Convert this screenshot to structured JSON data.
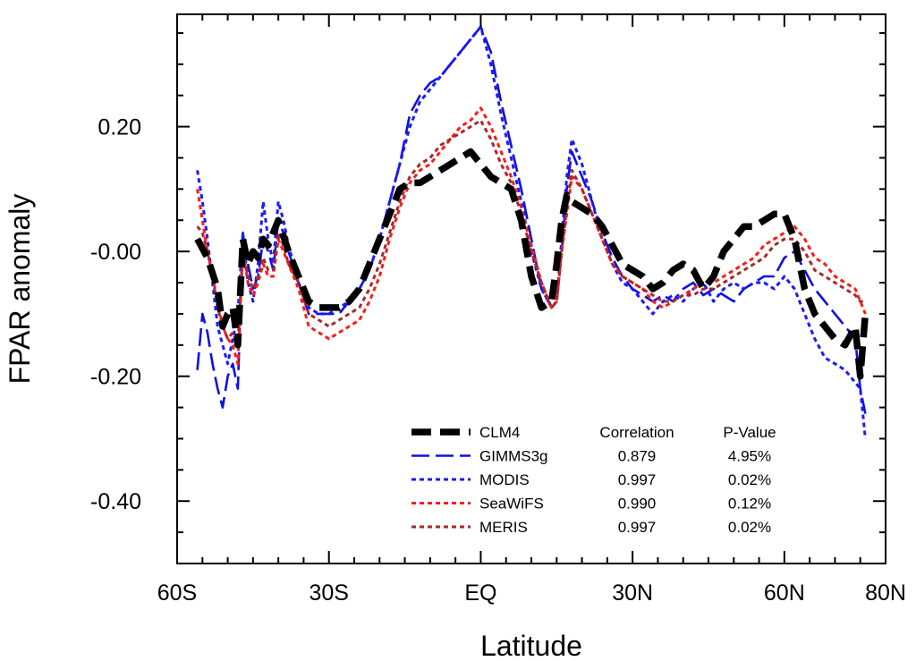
{
  "chart_data": {
    "type": "line",
    "xlabel": "Latitude",
    "ylabel": "FPAR anomaly",
    "xlim": [
      -60,
      80
    ],
    "ylim": [
      -0.5,
      0.38
    ],
    "x_ticks": [
      {
        "value": -60,
        "label": "60S"
      },
      {
        "value": -30,
        "label": "30S"
      },
      {
        "value": 0,
        "label": "EQ"
      },
      {
        "value": 30,
        "label": "30N"
      },
      {
        "value": 60,
        "label": "60N"
      },
      {
        "value": 80,
        "label": "80N"
      }
    ],
    "y_ticks": [
      {
        "value": 0.2,
        "label": "0.20"
      },
      {
        "value": 0.0,
        "label": "-0.00"
      },
      {
        "value": -0.2,
        "label": "-0.20"
      },
      {
        "value": -0.4,
        "label": "-0.40"
      }
    ],
    "legend": {
      "headers": {
        "correlation": "Correlation",
        "pvalue": "P-Value"
      },
      "placement": "bottom-right"
    },
    "series": [
      {
        "name": "CLM4",
        "color": "#000000",
        "style": "long-dash-thick",
        "correlation": "",
        "pvalue": "",
        "x": [
          -56,
          -54,
          -52,
          -51,
          -50,
          -49,
          -48,
          -47,
          -46,
          -45,
          -44,
          -43,
          -42,
          -40,
          -38,
          -37,
          -36,
          -34,
          -32,
          -30,
          -28,
          -26,
          -24,
          -22,
          -20,
          -18,
          -16,
          -14,
          -12,
          -10,
          -8,
          -6,
          -4,
          -2,
          0,
          2,
          4,
          6,
          8,
          10,
          12,
          14,
          15,
          16,
          17,
          18,
          20,
          22,
          24,
          26,
          28,
          30,
          32,
          34,
          36,
          38,
          40,
          42,
          44,
          46,
          48,
          50,
          52,
          54,
          56,
          58,
          60,
          62,
          64,
          66,
          68,
          70,
          72,
          74,
          75,
          76
        ],
        "y": [
          0.02,
          -0.01,
          -0.06,
          -0.12,
          -0.1,
          -0.09,
          -0.15,
          0.02,
          -0.02,
          0.0,
          -0.01,
          0.02,
          0.01,
          0.05,
          0.0,
          -0.02,
          -0.04,
          -0.08,
          -0.09,
          -0.09,
          -0.09,
          -0.08,
          -0.06,
          -0.02,
          0.02,
          0.06,
          0.1,
          0.11,
          0.11,
          0.12,
          0.13,
          0.14,
          0.15,
          0.16,
          0.14,
          0.12,
          0.11,
          0.1,
          0.05,
          -0.04,
          -0.09,
          -0.08,
          -0.02,
          0.05,
          0.09,
          0.08,
          0.07,
          0.06,
          0.04,
          0.01,
          -0.02,
          -0.03,
          -0.04,
          -0.06,
          -0.05,
          -0.03,
          -0.02,
          -0.03,
          -0.06,
          -0.04,
          0.0,
          0.02,
          0.04,
          0.04,
          0.05,
          0.06,
          0.06,
          0.02,
          -0.06,
          -0.1,
          -0.12,
          -0.14,
          -0.15,
          -0.12,
          -0.2,
          -0.1
        ]
      },
      {
        "name": "GIMMS3g",
        "color": "#1010e0",
        "style": "long-dash",
        "correlation": "0.879",
        "pvalue": "4.95%",
        "x": [
          -56,
          -55,
          -54,
          -53,
          -52,
          -51,
          -50,
          -49,
          -48,
          -47,
          -46,
          -45,
          -44,
          -43,
          -42,
          -41,
          -40,
          -39,
          -38,
          -36,
          -34,
          -32,
          -30,
          -28,
          -26,
          -24,
          -22,
          -20,
          -18,
          -16,
          -14,
          -12,
          -10,
          -8,
          -6,
          -4,
          -2,
          0,
          2,
          4,
          6,
          8,
          10,
          12,
          14,
          15,
          16,
          17,
          18,
          20,
          22,
          24,
          26,
          28,
          30,
          32,
          34,
          36,
          38,
          40,
          42,
          44,
          46,
          48,
          50,
          52,
          54,
          56,
          58,
          60,
          62,
          64,
          66,
          68,
          70,
          72,
          74,
          75,
          76
        ],
        "y": [
          -0.19,
          -0.1,
          -0.13,
          -0.18,
          -0.22,
          -0.25,
          -0.2,
          -0.18,
          -0.22,
          0.03,
          -0.02,
          -0.06,
          -0.04,
          0.02,
          0.0,
          -0.03,
          0.05,
          0.03,
          0.0,
          -0.05,
          -0.1,
          -0.1,
          -0.1,
          -0.1,
          -0.08,
          -0.06,
          -0.03,
          0.02,
          0.08,
          0.14,
          0.22,
          0.25,
          0.27,
          0.28,
          0.3,
          0.32,
          0.34,
          0.36,
          0.32,
          0.24,
          0.17,
          0.1,
          0.02,
          -0.06,
          -0.09,
          -0.08,
          0.0,
          0.1,
          0.16,
          0.12,
          0.08,
          0.03,
          -0.01,
          -0.04,
          -0.06,
          -0.07,
          -0.08,
          -0.07,
          -0.08,
          -0.06,
          -0.05,
          -0.07,
          -0.06,
          -0.07,
          -0.08,
          -0.06,
          -0.05,
          -0.04,
          -0.04,
          -0.01,
          0.0,
          -0.03,
          -0.06,
          -0.08,
          -0.1,
          -0.12,
          -0.14,
          -0.22,
          -0.26
        ]
      },
      {
        "name": "MODIS",
        "color": "#1a1aff",
        "style": "dot",
        "correlation": "0.997",
        "pvalue": "0.02%",
        "x": [
          -56,
          -55,
          -54,
          -53,
          -52,
          -51,
          -50,
          -49,
          -48,
          -47,
          -46,
          -45,
          -44,
          -43,
          -42,
          -41,
          -40,
          -39,
          -38,
          -36,
          -34,
          -32,
          -30,
          -28,
          -26,
          -24,
          -22,
          -20,
          -18,
          -16,
          -14,
          -12,
          -10,
          -8,
          -6,
          -4,
          -2,
          0,
          2,
          4,
          6,
          8,
          10,
          12,
          14,
          15,
          16,
          17,
          18,
          20,
          22,
          24,
          26,
          28,
          30,
          32,
          34,
          36,
          38,
          40,
          42,
          44,
          46,
          48,
          50,
          52,
          54,
          56,
          58,
          60,
          62,
          64,
          66,
          68,
          70,
          72,
          74,
          75,
          76
        ],
        "y": [
          0.13,
          0.08,
          0.02,
          -0.05,
          -0.12,
          -0.15,
          -0.18,
          -0.14,
          -0.1,
          0.03,
          -0.05,
          -0.08,
          -0.02,
          0.08,
          0.02,
          -0.02,
          0.08,
          0.05,
          0.01,
          -0.05,
          -0.09,
          -0.1,
          -0.1,
          -0.09,
          -0.08,
          -0.06,
          -0.03,
          0.02,
          0.08,
          0.14,
          0.2,
          0.24,
          0.26,
          0.28,
          0.3,
          0.32,
          0.34,
          0.36,
          0.3,
          0.22,
          0.15,
          0.08,
          0.0,
          -0.06,
          -0.09,
          -0.08,
          0.02,
          0.12,
          0.18,
          0.14,
          0.08,
          0.02,
          -0.02,
          -0.05,
          -0.06,
          -0.08,
          -0.1,
          -0.08,
          -0.07,
          -0.08,
          -0.06,
          -0.05,
          -0.08,
          -0.06,
          -0.05,
          -0.06,
          -0.05,
          -0.05,
          -0.06,
          -0.04,
          -0.06,
          -0.1,
          -0.14,
          -0.17,
          -0.18,
          -0.19,
          -0.21,
          -0.22,
          -0.3
        ]
      },
      {
        "name": "SeaWiFS",
        "color": "#ff1a1a",
        "style": "dot",
        "correlation": "0.990",
        "pvalue": "0.12%",
        "x": [
          -56,
          -55,
          -54,
          -53,
          -52,
          -51,
          -50,
          -49,
          -48,
          -47,
          -46,
          -45,
          -44,
          -43,
          -42,
          -41,
          -40,
          -39,
          -38,
          -36,
          -34,
          -32,
          -30,
          -28,
          -26,
          -24,
          -22,
          -20,
          -18,
          -16,
          -14,
          -12,
          -10,
          -8,
          -6,
          -4,
          -2,
          0,
          2,
          4,
          6,
          8,
          10,
          12,
          14,
          15,
          16,
          17,
          18,
          20,
          22,
          24,
          26,
          28,
          30,
          32,
          34,
          36,
          38,
          40,
          42,
          44,
          46,
          48,
          50,
          52,
          54,
          56,
          58,
          60,
          62,
          64,
          66,
          68,
          70,
          72,
          74,
          75,
          76
        ],
        "y": [
          0.1,
          0.05,
          0.0,
          -0.04,
          -0.08,
          -0.12,
          -0.14,
          -0.15,
          -0.18,
          0.0,
          -0.05,
          -0.07,
          -0.05,
          -0.02,
          -0.04,
          -0.04,
          0.02,
          0.0,
          -0.02,
          -0.06,
          -0.12,
          -0.13,
          -0.14,
          -0.13,
          -0.12,
          -0.11,
          -0.08,
          -0.04,
          0.02,
          0.07,
          0.11,
          0.13,
          0.14,
          0.16,
          0.18,
          0.2,
          0.21,
          0.23,
          0.2,
          0.16,
          0.12,
          0.07,
          0.01,
          -0.05,
          -0.09,
          -0.08,
          0.0,
          0.06,
          0.12,
          0.1,
          0.06,
          0.02,
          -0.02,
          -0.04,
          -0.05,
          -0.06,
          -0.08,
          -0.09,
          -0.08,
          -0.07,
          -0.06,
          -0.05,
          -0.05,
          -0.04,
          -0.03,
          -0.02,
          -0.01,
          0.01,
          0.02,
          0.03,
          0.04,
          0.02,
          -0.01,
          -0.02,
          -0.04,
          -0.05,
          -0.06,
          -0.08,
          -0.1
        ]
      },
      {
        "name": "MERIS",
        "color": "#a52a2a",
        "style": "dot",
        "correlation": "0.997",
        "pvalue": "0.02%",
        "x": [
          -56,
          -55,
          -54,
          -53,
          -52,
          -51,
          -50,
          -49,
          -48,
          -47,
          -46,
          -45,
          -44,
          -43,
          -42,
          -41,
          -40,
          -39,
          -38,
          -36,
          -34,
          -32,
          -30,
          -28,
          -26,
          -24,
          -22,
          -20,
          -18,
          -16,
          -14,
          -12,
          -10,
          -8,
          -6,
          -4,
          -2,
          0,
          2,
          4,
          6,
          8,
          10,
          12,
          14,
          15,
          16,
          17,
          18,
          20,
          22,
          24,
          26,
          28,
          30,
          32,
          34,
          36,
          38,
          40,
          42,
          44,
          46,
          48,
          50,
          52,
          54,
          56,
          58,
          60,
          62,
          64,
          66,
          68,
          70,
          72,
          74,
          75,
          76
        ],
        "y": [
          0.04,
          0.03,
          0.0,
          -0.04,
          -0.09,
          -0.12,
          -0.14,
          -0.13,
          -0.15,
          0.0,
          -0.04,
          -0.06,
          -0.04,
          -0.01,
          -0.03,
          -0.03,
          0.03,
          0.01,
          -0.02,
          -0.05,
          -0.1,
          -0.11,
          -0.12,
          -0.11,
          -0.1,
          -0.09,
          -0.06,
          -0.02,
          0.03,
          0.08,
          0.12,
          0.14,
          0.15,
          0.17,
          0.18,
          0.19,
          0.2,
          0.21,
          0.18,
          0.14,
          0.11,
          0.06,
          0.0,
          -0.05,
          -0.09,
          -0.08,
          0.0,
          0.07,
          0.13,
          0.1,
          0.06,
          0.02,
          -0.02,
          -0.04,
          -0.05,
          -0.06,
          -0.07,
          -0.08,
          -0.08,
          -0.07,
          -0.07,
          -0.06,
          -0.06,
          -0.05,
          -0.04,
          -0.03,
          -0.02,
          -0.01,
          0.01,
          0.02,
          0.02,
          0.0,
          -0.03,
          -0.04,
          -0.05,
          -0.06,
          -0.07,
          -0.08,
          -0.08
        ]
      }
    ]
  }
}
